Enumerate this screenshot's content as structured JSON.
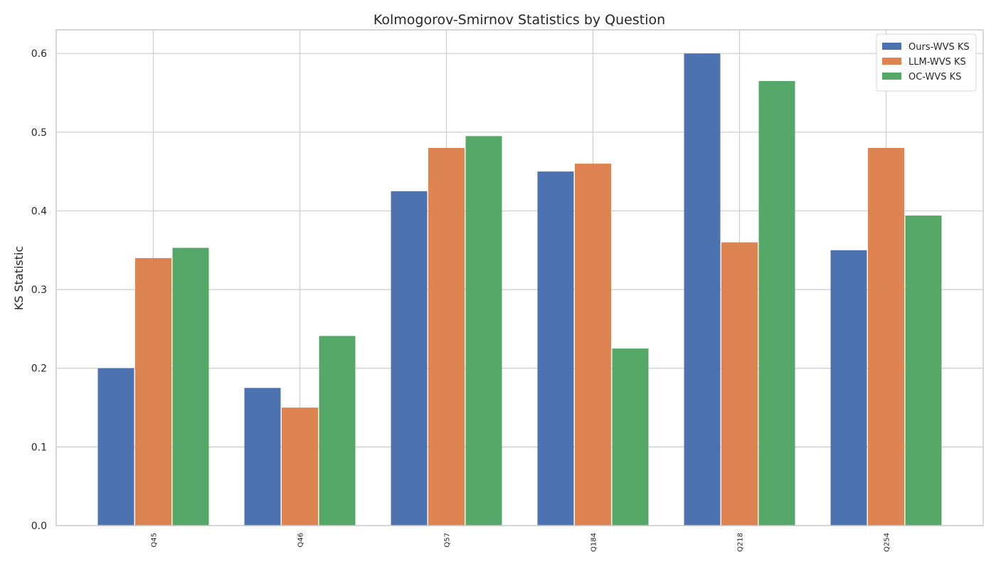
{
  "chart_data": {
    "type": "bar",
    "title": "Kolmogorov-Smirnov Statistics by Question",
    "xlabel": "",
    "ylabel": "KS Statistic",
    "categories": [
      "Q45",
      "Q46",
      "Q57",
      "Q184",
      "Q218",
      "Q254"
    ],
    "series": [
      {
        "name": "Ours-WVS KS",
        "color": "#4c72b0",
        "values": [
          0.2,
          0.175,
          0.425,
          0.45,
          0.6,
          0.35
        ]
      },
      {
        "name": "LLM-WVS KS",
        "color": "#dd8452",
        "values": [
          0.34,
          0.15,
          0.48,
          0.46,
          0.36,
          0.48
        ]
      },
      {
        "name": "OC-WVS KS",
        "color": "#55a868",
        "values": [
          0.353,
          0.241,
          0.495,
          0.225,
          0.565,
          0.394
        ]
      }
    ],
    "ylim": [
      0,
      0.63
    ],
    "yticks": [
      "0.0",
      "0.1",
      "0.2",
      "0.3",
      "0.4",
      "0.5",
      "0.6"
    ],
    "grid": true,
    "legend_position": "top-right"
  }
}
